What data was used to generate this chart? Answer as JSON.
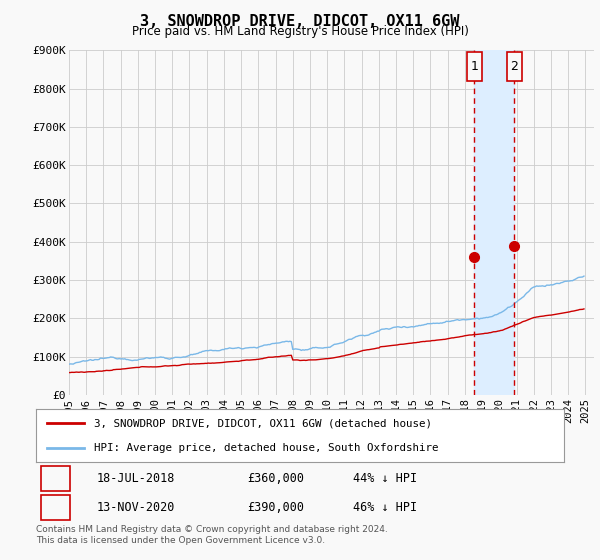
{
  "title": "3, SNOWDROP DRIVE, DIDCOT, OX11 6GW",
  "subtitle": "Price paid vs. HM Land Registry's House Price Index (HPI)",
  "ylabel_ticks": [
    "£0",
    "£100K",
    "£200K",
    "£300K",
    "£400K",
    "£500K",
    "£600K",
    "£700K",
    "£800K",
    "£900K"
  ],
  "ylim": [
    0,
    900000
  ],
  "xlim_start": 1995.0,
  "xlim_end": 2025.5,
  "hpi_color": "#7ab8e8",
  "price_color": "#cc0000",
  "transaction1": {
    "date": "18-JUL-2018",
    "price": 360000,
    "label": "1",
    "year": 2018.54
  },
  "transaction2": {
    "date": "13-NOV-2020",
    "price": 390000,
    "label": "2",
    "year": 2020.87
  },
  "legend_house": "3, SNOWDROP DRIVE, DIDCOT, OX11 6GW (detached house)",
  "legend_hpi": "HPI: Average price, detached house, South Oxfordshire",
  "footnote": "Contains HM Land Registry data © Crown copyright and database right 2024.\nThis data is licensed under the Open Government Licence v3.0.",
  "table_rows": [
    {
      "label": "1",
      "date": "18-JUL-2018",
      "price": "£360,000",
      "pct": "44% ↓ HPI"
    },
    {
      "label": "2",
      "date": "13-NOV-2020",
      "price": "£390,000",
      "pct": "46% ↓ HPI"
    }
  ],
  "background_color": "#f9f9f9",
  "grid_color": "#cccccc",
  "shade_color": "#ddeeff"
}
